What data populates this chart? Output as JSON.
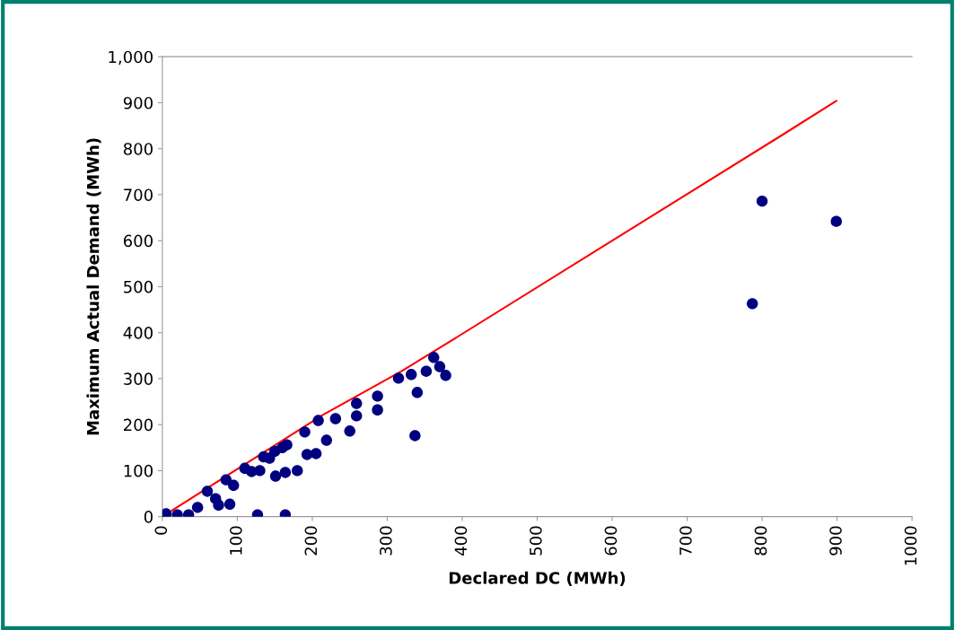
{
  "chart_data": {
    "type": "scatter",
    "xlabel": "Declared DC (MWh)",
    "ylabel": "Maximum Actual Demand (MWh)",
    "xlim": [
      0,
      1000
    ],
    "xticks": [
      0,
      100,
      200,
      300,
      400,
      500,
      600,
      700,
      800,
      900,
      1000
    ],
    "ylim": [
      0,
      1000
    ],
    "yticks": [
      0,
      100,
      200,
      300,
      400,
      500,
      600,
      700,
      800,
      900,
      {
        "value": 1000,
        "label": "1,000"
      }
    ],
    "grid": false,
    "legend": false,
    "series": [
      {
        "color": "#000080",
        "marker": "circle",
        "x": [
          787,
          800,
          899,
          362,
          370,
          378,
          352,
          332,
          315,
          340,
          337,
          287,
          287,
          250,
          259,
          259,
          231,
          219,
          205,
          193,
          180,
          164,
          151,
          127,
          164,
          208,
          190,
          166,
          143,
          119,
          95,
          71,
          47,
          5,
          20,
          35,
          90,
          75,
          60,
          85,
          110,
          135,
          160,
          130,
          150
        ],
        "values": [
          463,
          686,
          642,
          346,
          326,
          307,
          316,
          309,
          301,
          270,
          176,
          262,
          232,
          186,
          219,
          246,
          213,
          166,
          137,
          135,
          100,
          96,
          88,
          4,
          4,
          209,
          184,
          156,
          127,
          98,
          68,
          39,
          20,
          6,
          4,
          4,
          27,
          25,
          55,
          80,
          105,
          130,
          150,
          100,
          142
        ]
      },
      {
        "type": "line",
        "color": "#ff0000",
        "x": [
          0,
          214,
          319,
          380,
          831,
          899
        ],
        "values": [
          0,
          221,
          316,
          377,
          834,
          904
        ]
      }
    ]
  }
}
